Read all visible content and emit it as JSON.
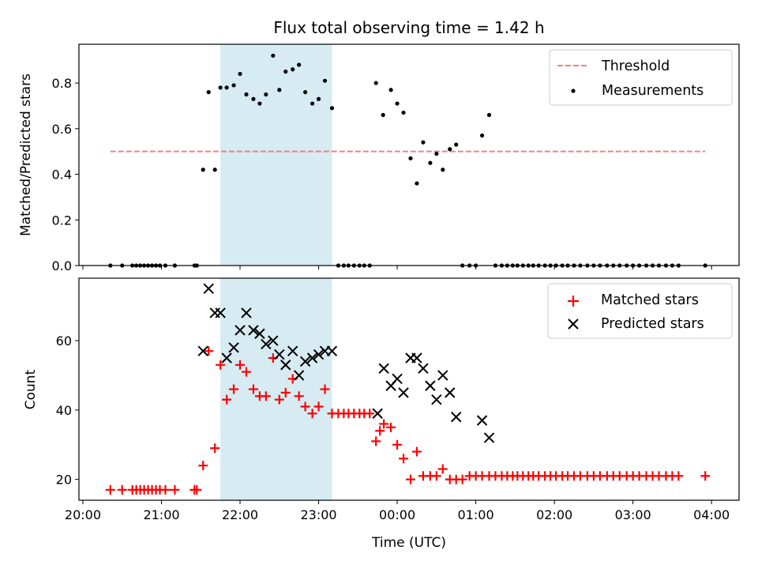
{
  "figure": {
    "title": "Flux total observing time = 1.42 h",
    "xlabel": "Time (UTC)"
  },
  "colors": {
    "threshold": "#f08080",
    "measurement": "#000000",
    "matched": "#ff0000",
    "predicted": "#000000",
    "shade": "#add8e6"
  },
  "chart_data": [
    {
      "type": "scatter",
      "ylabel": "Matched/Predicted stars",
      "xlim": [
        -0.05,
        8.35
      ],
      "ylim": [
        0,
        0.97
      ],
      "yticks": [
        0.0,
        0.2,
        0.4,
        0.6,
        0.8
      ],
      "ytick_labels": [
        "0.0",
        "0.2",
        "0.4",
        "0.6",
        "0.8"
      ],
      "shaded_span": [
        1.75,
        3.17
      ],
      "threshold": {
        "name": "Threshold",
        "y": 0.5,
        "x": [
          0.35,
          7.92
        ]
      },
      "legend": {
        "position": "top-right",
        "entries": [
          "Threshold",
          "Measurements"
        ]
      },
      "series": [
        {
          "name": "Measurements",
          "marker": "dot",
          "x": [
            0.35,
            0.5,
            0.63,
            0.68,
            0.73,
            0.78,
            0.83,
            0.88,
            0.93,
            0.98,
            1.05,
            1.17,
            1.42,
            1.45,
            1.53,
            1.6,
            1.68,
            1.75,
            1.83,
            1.92,
            2.0,
            2.08,
            2.17,
            2.25,
            2.33,
            2.42,
            2.5,
            2.58,
            2.67,
            2.75,
            2.83,
            2.92,
            3.0,
            3.08,
            3.17,
            3.25,
            3.32,
            3.38,
            3.45,
            3.52,
            3.58,
            3.65,
            3.73,
            3.82,
            3.92,
            4.0,
            4.08,
            4.17,
            4.25,
            4.33,
            4.42,
            4.5,
            4.58,
            4.67,
            4.75,
            4.83,
            4.92,
            5.0,
            5.08,
            5.17,
            5.25,
            5.33,
            5.4,
            5.47,
            5.53,
            5.6,
            5.67,
            5.73,
            5.8,
            5.88,
            5.95,
            6.02,
            6.1,
            6.17,
            6.25,
            6.33,
            6.42,
            6.5,
            6.58,
            6.67,
            6.75,
            6.83,
            6.92,
            7.0,
            7.08,
            7.17,
            7.25,
            7.33,
            7.42,
            7.5,
            7.58,
            7.92
          ],
          "y": [
            0,
            0,
            0,
            0,
            0,
            0,
            0,
            0,
            0,
            0,
            0,
            0,
            0,
            0,
            0.42,
            0.76,
            0.42,
            0.78,
            0.78,
            0.79,
            0.84,
            0.75,
            0.73,
            0.71,
            0.75,
            0.92,
            0.77,
            0.85,
            0.86,
            0.88,
            0.76,
            0.71,
            0.73,
            0.81,
            0.69,
            0,
            0,
            0,
            0,
            0,
            0,
            0,
            0.8,
            0.66,
            0.77,
            0.71,
            0.67,
            0.47,
            0.36,
            0.54,
            0.45,
            0.49,
            0.42,
            0.51,
            0.53,
            0,
            0,
            0,
            0.57,
            0.66,
            0,
            0,
            0,
            0,
            0,
            0,
            0,
            0,
            0,
            0,
            0,
            0,
            0,
            0,
            0,
            0,
            0,
            0,
            0,
            0,
            0,
            0,
            0,
            0,
            0,
            0,
            0,
            0,
            0,
            0,
            0,
            0
          ]
        }
      ]
    },
    {
      "type": "scatter",
      "ylabel": "Count",
      "xlabel": "Time (UTC)",
      "xlim": [
        -0.05,
        8.35
      ],
      "ylim": [
        14,
        78
      ],
      "yticks": [
        20,
        40,
        60
      ],
      "ytick_labels": [
        "20",
        "40",
        "60"
      ],
      "xticks": [
        0,
        1,
        2,
        3,
        4,
        5,
        6,
        7,
        8
      ],
      "xtick_labels": [
        "20:00",
        "21:00",
        "22:00",
        "23:00",
        "00:00",
        "01:00",
        "02:00",
        "03:00",
        "04:00"
      ],
      "shaded_span": [
        1.75,
        3.17
      ],
      "legend": {
        "position": "top-right",
        "entries": [
          "Matched stars",
          "Predicted stars"
        ]
      },
      "series": [
        {
          "name": "Matched stars",
          "marker": "plus",
          "x": [
            0.35,
            0.5,
            0.63,
            0.68,
            0.73,
            0.78,
            0.83,
            0.88,
            0.93,
            0.98,
            1.05,
            1.17,
            1.42,
            1.45,
            1.53,
            1.6,
            1.68,
            1.75,
            1.83,
            1.92,
            2.0,
            2.08,
            2.17,
            2.25,
            2.33,
            2.42,
            2.5,
            2.58,
            2.67,
            2.75,
            2.83,
            2.92,
            3.0,
            3.08,
            3.17,
            3.25,
            3.32,
            3.38,
            3.45,
            3.52,
            3.58,
            3.65,
            3.73,
            3.78,
            3.83,
            3.92,
            4.0,
            4.08,
            4.17,
            4.25,
            4.33,
            4.42,
            4.5,
            4.58,
            4.67,
            4.75,
            4.83,
            4.92,
            5.0,
            5.08,
            5.17,
            5.25,
            5.33,
            5.4,
            5.47,
            5.53,
            5.6,
            5.67,
            5.73,
            5.8,
            5.88,
            5.95,
            6.02,
            6.1,
            6.17,
            6.25,
            6.33,
            6.42,
            6.5,
            6.58,
            6.67,
            6.75,
            6.83,
            6.92,
            7.0,
            7.08,
            7.17,
            7.25,
            7.33,
            7.42,
            7.5,
            7.58,
            7.92
          ],
          "y": [
            17,
            17,
            17,
            17,
            17,
            17,
            17,
            17,
            17,
            17,
            17,
            17,
            17,
            17,
            24,
            57,
            29,
            53,
            43,
            46,
            53,
            51,
            46,
            44,
            44,
            55,
            43,
            45,
            49,
            44,
            41,
            39,
            41,
            46,
            39,
            39,
            39,
            39,
            39,
            39,
            39,
            39,
            31,
            34,
            36,
            35,
            30,
            26,
            20,
            28,
            21,
            21,
            21,
            23,
            20,
            20,
            20,
            21,
            21,
            21,
            21,
            21,
            21,
            21,
            21,
            21,
            21,
            21,
            21,
            21,
            21,
            21,
            21,
            21,
            21,
            21,
            21,
            21,
            21,
            21,
            21,
            21,
            21,
            21,
            21,
            21,
            21,
            21,
            21,
            21,
            21,
            21,
            21
          ]
        },
        {
          "name": "Predicted stars",
          "marker": "x",
          "x": [
            1.53,
            1.6,
            1.68,
            1.75,
            1.83,
            1.92,
            2.0,
            2.08,
            2.17,
            2.25,
            2.33,
            2.42,
            2.5,
            2.58,
            2.67,
            2.75,
            2.83,
            2.92,
            3.0,
            3.08,
            3.17,
            3.75,
            3.83,
            3.92,
            4.0,
            4.08,
            4.17,
            4.25,
            4.33,
            4.42,
            4.5,
            4.58,
            4.67,
            4.75,
            5.08,
            5.17
          ],
          "y": [
            57,
            75,
            68,
            68,
            55,
            58,
            63,
            68,
            63,
            62,
            59,
            60,
            56,
            53,
            57,
            50,
            54,
            55,
            56,
            57,
            57,
            39,
            52,
            47,
            49,
            45,
            55,
            55,
            52,
            47,
            43,
            50,
            45,
            38,
            37,
            32
          ]
        }
      ]
    }
  ]
}
